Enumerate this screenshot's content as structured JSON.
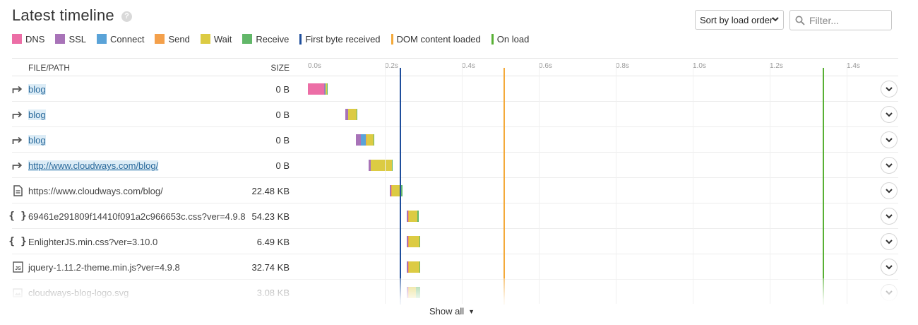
{
  "title": "Latest timeline",
  "help_icon": "question-circle-icon",
  "sort": {
    "selected": "Sort by load order"
  },
  "filter": {
    "placeholder": "Filter..."
  },
  "legend": [
    {
      "label": "DNS",
      "color": "#ec6ea6",
      "kind": "swatch"
    },
    {
      "label": "SSL",
      "color": "#a873b8",
      "kind": "swatch"
    },
    {
      "label": "Connect",
      "color": "#5aa3d8",
      "kind": "swatch"
    },
    {
      "label": "Send",
      "color": "#f4a04b",
      "kind": "swatch"
    },
    {
      "label": "Wait",
      "color": "#dccb43",
      "kind": "swatch"
    },
    {
      "label": "Receive",
      "color": "#62b769",
      "kind": "swatch"
    },
    {
      "label": "First byte received",
      "color": "#1f4e9c",
      "kind": "line"
    },
    {
      "label": "DOM content loaded",
      "color": "#f4a93a",
      "kind": "line"
    },
    {
      "label": "On load",
      "color": "#58b034",
      "kind": "line"
    }
  ],
  "columns": {
    "file": "FILE/PATH",
    "size": "SIZE"
  },
  "ticks": [
    "0.0s",
    "0.2s",
    "0.4s",
    "0.6s",
    "0.8s",
    "1.0s",
    "1.2s",
    "1.4s"
  ],
  "markers": {
    "first_byte_s": 0.24,
    "dom_content_loaded_s": 0.51,
    "on_load_s": 1.34
  },
  "rows": [
    {
      "icon": "redirect-icon",
      "name": "blog",
      "size": "0 B",
      "style": "highlight",
      "segments": [
        {
          "t": "dns",
          "s": 0.0,
          "e": 0.042
        },
        {
          "t": "ssl",
          "s": 0.042,
          "e": 0.044
        },
        {
          "t": "connect",
          "s": 0.044,
          "e": 0.045
        },
        {
          "t": "wait",
          "s": 0.045,
          "e": 0.049
        },
        {
          "t": "receive",
          "s": 0.049,
          "e": 0.05
        }
      ]
    },
    {
      "icon": "redirect-icon",
      "name": "blog",
      "size": "0 B",
      "style": "highlight",
      "segments": [
        {
          "t": "ssl",
          "s": 0.098,
          "e": 0.104
        },
        {
          "t": "wait",
          "s": 0.104,
          "e": 0.126
        },
        {
          "t": "receive",
          "s": 0.126,
          "e": 0.128
        }
      ]
    },
    {
      "icon": "redirect-icon",
      "name": "blog",
      "size": "0 B",
      "style": "highlight",
      "segments": [
        {
          "t": "ssl",
          "s": 0.124,
          "e": 0.138
        },
        {
          "t": "connect",
          "s": 0.138,
          "e": 0.15
        },
        {
          "t": "send",
          "s": 0.15,
          "e": 0.153
        },
        {
          "t": "wait",
          "s": 0.153,
          "e": 0.171
        },
        {
          "t": "receive",
          "s": 0.171,
          "e": 0.172
        }
      ]
    },
    {
      "icon": "redirect-icon",
      "name": "http://www.cloudways.com/blog/",
      "size": "0 B",
      "style": "link",
      "segments": [
        {
          "t": "ssl",
          "s": 0.158,
          "e": 0.164
        },
        {
          "t": "wait",
          "s": 0.164,
          "e": 0.218
        },
        {
          "t": "receive",
          "s": 0.218,
          "e": 0.221
        }
      ]
    },
    {
      "icon": "document-icon",
      "name": "https://www.cloudways.com/blog/",
      "size": "22.48 KB",
      "style": "plain",
      "segments": [
        {
          "t": "ssl",
          "s": 0.212,
          "e": 0.216
        },
        {
          "t": "send",
          "s": 0.216,
          "e": 0.218
        },
        {
          "t": "wait",
          "s": 0.218,
          "e": 0.24
        },
        {
          "t": "receive",
          "s": 0.24,
          "e": 0.246
        }
      ]
    },
    {
      "icon": "css-braces-icon",
      "name": "69461e291809f14410f091a2c966653c.css?ver=4.9.8",
      "size": "54.23 KB",
      "style": "plain",
      "segments": [
        {
          "t": "ssl",
          "s": 0.256,
          "e": 0.26
        },
        {
          "t": "send",
          "s": 0.26,
          "e": 0.262
        },
        {
          "t": "wait",
          "s": 0.262,
          "e": 0.284
        },
        {
          "t": "receive",
          "s": 0.284,
          "e": 0.289
        }
      ]
    },
    {
      "icon": "css-braces-icon",
      "name": "EnlighterJS.min.css?ver=3.10.0",
      "size": "6.49 KB",
      "style": "plain",
      "segments": [
        {
          "t": "ssl",
          "s": 0.256,
          "e": 0.26
        },
        {
          "t": "send",
          "s": 0.26,
          "e": 0.262
        },
        {
          "t": "wait",
          "s": 0.262,
          "e": 0.29
        },
        {
          "t": "receive",
          "s": 0.29,
          "e": 0.292
        }
      ]
    },
    {
      "icon": "js-file-icon",
      "name": "jquery-1.11.2-theme.min.js?ver=4.9.8",
      "size": "32.74 KB",
      "style": "plain",
      "segments": [
        {
          "t": "ssl",
          "s": 0.256,
          "e": 0.26
        },
        {
          "t": "send",
          "s": 0.26,
          "e": 0.262
        },
        {
          "t": "wait",
          "s": 0.262,
          "e": 0.29
        },
        {
          "t": "receive",
          "s": 0.29,
          "e": 0.292
        }
      ]
    },
    {
      "icon": "image-file-icon",
      "name": "cloudways-blog-logo.svg",
      "size": "3.08 KB",
      "style": "plain",
      "segments": [
        {
          "t": "ssl",
          "s": 0.256,
          "e": 0.26
        },
        {
          "t": "send",
          "s": 0.26,
          "e": 0.262
        },
        {
          "t": "wait",
          "s": 0.262,
          "e": 0.28
        },
        {
          "t": "receive",
          "s": 0.28,
          "e": 0.292
        }
      ]
    }
  ],
  "show_all": "Show all"
}
